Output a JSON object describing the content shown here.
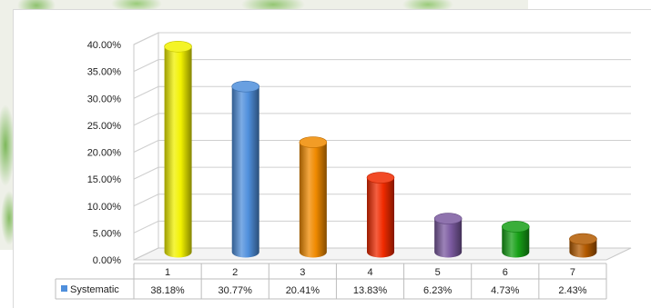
{
  "chart_data": {
    "type": "bar",
    "title": "",
    "xlabel": "",
    "ylabel": "",
    "categories": [
      "1",
      "2",
      "3",
      "4",
      "5",
      "6",
      "7"
    ],
    "series": [
      {
        "name": "Systematic",
        "values": [
          38.18,
          30.77,
          20.41,
          13.83,
          6.23,
          4.73,
          2.43
        ],
        "value_labels": [
          "38.18%",
          "30.77%",
          "20.41%",
          "13.83%",
          "6.23%",
          "4.73%",
          "2.43%"
        ]
      }
    ],
    "bar_colors": [
      "#f2f200",
      "#4f8fdc",
      "#f08a00",
      "#f02a00",
      "#7b5aa0",
      "#17a017",
      "#b35a00"
    ],
    "legend_color": "#4f8fdc",
    "ylim": [
      0,
      40
    ],
    "yticks": [
      0,
      5,
      10,
      15,
      20,
      25,
      30,
      35,
      40
    ],
    "ytick_labels": [
      "0.00%",
      "5.00%",
      "10.00%",
      "15.00%",
      "20.00%",
      "25.00%",
      "30.00%",
      "35.00%",
      "40.00%"
    ],
    "grid": true,
    "bar_shape": "3d-cylinder",
    "legend_placement": "data-table-row"
  }
}
